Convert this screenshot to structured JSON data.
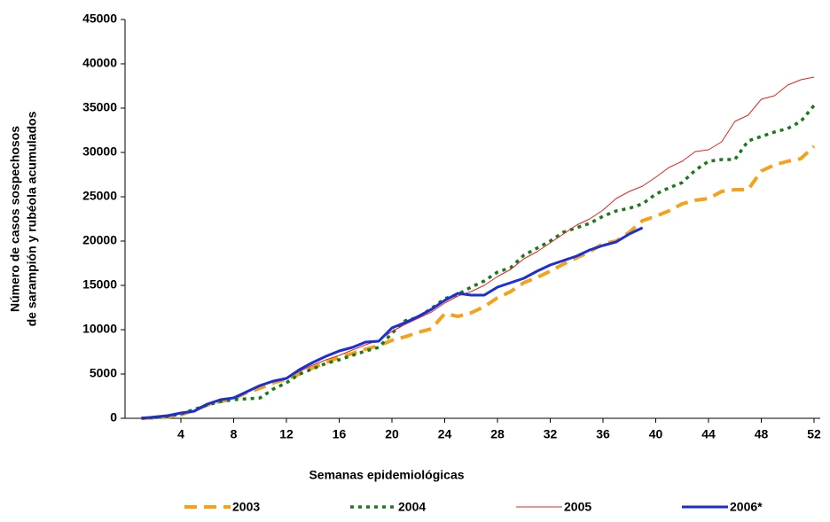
{
  "chart_data": {
    "type": "line",
    "ylabel": [
      "Número de casos sospechosos",
      "de sarampión y rubéola acumulados"
    ],
    "xlabel": "Semanas epidemiológicas",
    "x": [
      1,
      2,
      3,
      4,
      5,
      6,
      7,
      8,
      9,
      10,
      11,
      12,
      13,
      14,
      15,
      16,
      17,
      18,
      19,
      20,
      21,
      22,
      23,
      24,
      25,
      26,
      27,
      28,
      29,
      30,
      31,
      32,
      33,
      34,
      35,
      36,
      37,
      38,
      39,
      40,
      41,
      42,
      43,
      44,
      45,
      46,
      47,
      48,
      49,
      50,
      51,
      52
    ],
    "xlim": [
      0,
      52
    ],
    "xticks": [
      4,
      8,
      12,
      16,
      20,
      24,
      28,
      32,
      36,
      40,
      44,
      48,
      52
    ],
    "ylim": [
      0,
      45000
    ],
    "yticks": [
      0,
      5000,
      10000,
      15000,
      20000,
      25000,
      30000,
      35000,
      40000,
      45000
    ],
    "legend": "bottom",
    "series": [
      {
        "name": "2003",
        "color": "#f5a21b",
        "dash": "14,8",
        "width": 4,
        "values": [
          0,
          50,
          150,
          400,
          900,
          1500,
          1900,
          2200,
          2900,
          3400,
          4000,
          4400,
          5000,
          5700,
          6300,
          6900,
          7300,
          7800,
          8200,
          8800,
          9200,
          9700,
          10100,
          11800,
          11500,
          11900,
          12600,
          13600,
          14300,
          15300,
          15900,
          16600,
          17400,
          18100,
          18800,
          19700,
          20000,
          21000,
          22300,
          22800,
          23400,
          24200,
          24600,
          24800,
          25600,
          25800,
          25800,
          27900,
          28600,
          29000,
          29300,
          30700
        ]
      },
      {
        "name": "2004",
        "color": "#1a7a1a",
        "dash": "4,5",
        "width": 3.5,
        "values": [
          0,
          100,
          200,
          500,
          1000,
          1500,
          1900,
          2100,
          2200,
          2300,
          3300,
          4000,
          5000,
          5600,
          6200,
          6600,
          7100,
          7600,
          8000,
          9600,
          11000,
          11400,
          12400,
          13500,
          14000,
          14800,
          15500,
          16500,
          17000,
          18400,
          19200,
          20000,
          21000,
          21500,
          22000,
          22800,
          23400,
          23700,
          24200,
          25300,
          26000,
          26600,
          28000,
          29000,
          29200,
          29200,
          31300,
          31800,
          32300,
          32700,
          33500,
          35300
        ]
      },
      {
        "name": "2005",
        "color": "#e8221b",
        "dash": "none",
        "width": 1,
        "values": [
          0,
          100,
          200,
          500,
          900,
          1500,
          2000,
          2400,
          3000,
          3600,
          4100,
          4600,
          5300,
          6000,
          6600,
          7100,
          7700,
          8300,
          8800,
          9800,
          10600,
          11300,
          12000,
          13000,
          13800,
          14300,
          15000,
          16000,
          16800,
          18000,
          18800,
          19800,
          20800,
          21800,
          22500,
          23500,
          24800,
          25600,
          26200,
          27200,
          28300,
          29000,
          30100,
          30300,
          31200,
          33500,
          34200,
          36000,
          36400,
          37600,
          38200,
          38500
        ]
      },
      {
        "name": "2006*",
        "color": "#1b2fd6",
        "dash": "none",
        "width": 3,
        "values": [
          0,
          150,
          300,
          600,
          800,
          1600,
          2100,
          2300,
          3000,
          3700,
          4200,
          4500,
          5500,
          6300,
          7000,
          7600,
          8000,
          8600,
          8700,
          10200,
          10800,
          11500,
          12300,
          13300,
          14100,
          13900,
          13900,
          14800,
          15300,
          15800,
          16600,
          17300,
          17800,
          18300,
          19000,
          19500,
          19900,
          20800,
          21500,
          null,
          null,
          null,
          null,
          null,
          null,
          null,
          null,
          null,
          null,
          null,
          null,
          null
        ]
      }
    ]
  }
}
